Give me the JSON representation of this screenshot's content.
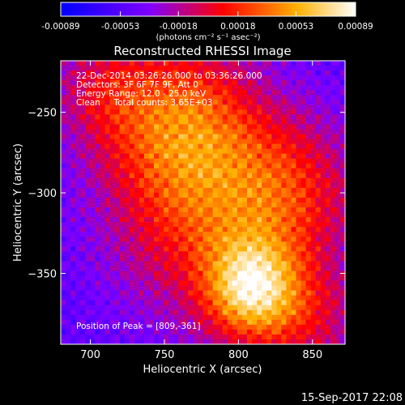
{
  "colorbar": {
    "ticks": [
      {
        "value": -0.00089,
        "label": "-0.00089"
      },
      {
        "value": -0.00053,
        "label": "-0.00053"
      },
      {
        "value": -0.00018,
        "label": "-0.00018"
      },
      {
        "value": 0.00018,
        "label": "0.00018"
      },
      {
        "value": 0.00053,
        "label": "0.00053"
      },
      {
        "value": 0.00089,
        "label": "0.00089"
      }
    ],
    "range": [
      -0.00089,
      0.00089
    ],
    "unit_label": "(photons cm⁻² s⁻¹ asec⁻²)",
    "colors": [
      "#0000ff",
      "#7f00ff",
      "#ff0000",
      "#ffb000",
      "#ffffff"
    ]
  },
  "chart_data": {
    "type": "heatmap",
    "title": "Reconstructed RHESSI Image",
    "xlabel": "Heliocentric X (arcsec)",
    "ylabel": "Heliocentric Y (arcsec)",
    "xlim": [
      680,
      872
    ],
    "ylim": [
      -394,
      -218
    ],
    "xticks": [
      700,
      750,
      800,
      850
    ],
    "yticks": [
      -250,
      -300,
      -350
    ],
    "annotations": {
      "time_range": "22-Dec-2014 03:26:26.000 to 03:36:26.000",
      "detectors": "Detectors: 3F 6F 7F 9F, Att 0",
      "energy": "Energy Range: 12.0 - 25.0 keV",
      "clean": "Clean     Total counts: 3.65E+03",
      "peak": "Position of Peak = [809,-361]"
    },
    "peak": {
      "x": 809,
      "y": -361
    },
    "colorbar_range": [
      -0.00089,
      0.00089
    ]
  },
  "footer": {
    "timestamp": "15-Sep-2017 22:08"
  }
}
